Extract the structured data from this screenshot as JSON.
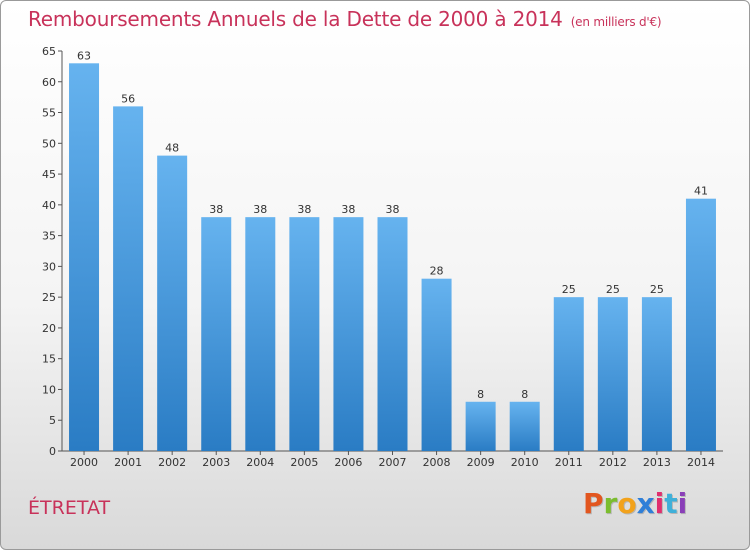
{
  "chart_data": {
    "type": "bar",
    "title": "Remboursements Annuels de la Dette de 2000 à 2014",
    "subtitle": "(en milliers d'€)",
    "categories": [
      "2000",
      "2001",
      "2002",
      "2003",
      "2004",
      "2005",
      "2006",
      "2007",
      "2008",
      "2009",
      "2010",
      "2011",
      "2012",
      "2013",
      "2014"
    ],
    "values": [
      63,
      56,
      48,
      38,
      38,
      38,
      38,
      38,
      28,
      8,
      8,
      25,
      25,
      25,
      41
    ],
    "ylim": [
      0,
      65
    ],
    "yticks": [
      0,
      5,
      10,
      15,
      20,
      25,
      30,
      35,
      40,
      45,
      50,
      55,
      60,
      65
    ],
    "xlabel": "",
    "ylabel": "",
    "grid": false,
    "bar_color": "#3a8fd9"
  },
  "footer": {
    "place": "ÉTRETAT",
    "logo_letters": [
      "P",
      "r",
      "o",
      "x",
      "i",
      "t",
      "i"
    ],
    "logo_colors": [
      "#e2561f",
      "#7bbd2e",
      "#f2a21b",
      "#2f7fd8",
      "#e02f6e",
      "#3fb0d9",
      "#8a3fb8"
    ]
  }
}
